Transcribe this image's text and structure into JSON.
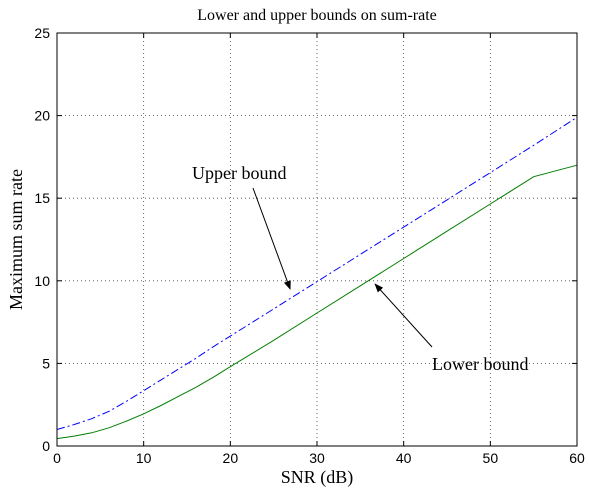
{
  "chart_data": {
    "type": "line",
    "title": "Lower and upper bounds on sum-rate",
    "xlabel": "SNR (dB)",
    "ylabel": "Maximum sum rate",
    "xlim": [
      0,
      60
    ],
    "ylim": [
      0,
      25
    ],
    "xticks": [
      0,
      10,
      20,
      30,
      40,
      50,
      60
    ],
    "yticks": [
      0,
      5,
      10,
      15,
      20,
      25
    ],
    "grid": true,
    "series": [
      {
        "name": "Upper bound",
        "color": "#0000ff",
        "style": "dash-dot",
        "x": [
          0,
          2,
          4,
          6,
          8,
          10,
          12,
          14,
          16,
          18,
          20,
          25,
          30,
          35,
          40,
          45,
          50,
          55,
          60
        ],
        "y": [
          1.0,
          1.3,
          1.65,
          2.1,
          2.7,
          3.35,
          4.0,
          4.65,
          5.3,
          6.0,
          6.65,
          8.3,
          9.95,
          11.6,
          13.25,
          14.9,
          16.55,
          18.2,
          19.9
        ]
      },
      {
        "name": "Lower bound",
        "color": "#007f00",
        "style": "solid",
        "x": [
          0,
          2,
          4,
          6,
          8,
          10,
          12,
          14,
          16,
          18,
          20,
          25,
          30,
          35,
          40,
          45,
          50,
          55,
          60
        ],
        "y": [
          0.45,
          0.6,
          0.8,
          1.1,
          1.5,
          1.95,
          2.45,
          3.0,
          3.55,
          4.15,
          4.8,
          6.4,
          8.05,
          9.7,
          11.35,
          13.0,
          14.65,
          16.3,
          17.0
        ]
      }
    ],
    "annotations": [
      {
        "text": "Upper bound",
        "points_to": {
          "x": 26.9,
          "y": 9.5
        }
      },
      {
        "text": "Lower bound",
        "points_to": {
          "x": 36.7,
          "y": 9.8
        }
      }
    ]
  }
}
